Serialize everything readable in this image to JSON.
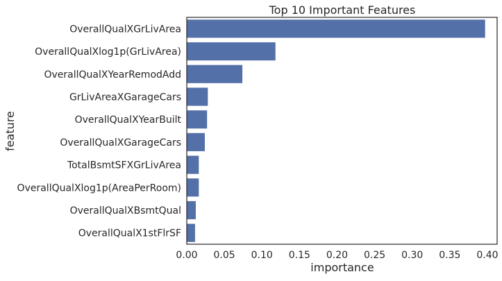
{
  "chart_data": {
    "type": "bar",
    "orientation": "horizontal",
    "title": "Top 10 Important Features",
    "xlabel": "importance",
    "ylabel": "feature",
    "categories": [
      "OverallQualXGrLivArea",
      "OverallQualXlog1p(GrLivArea)",
      "OverallQualXYearRemodAdd",
      "GrLivAreaXGarageCars",
      "OverallQualXYearBuilt",
      "OverallQualXGarageCars",
      "TotalBsmtSFXGrLivArea",
      "OverallQualXlog1p(AreaPerRoom)",
      "OverallQualXBsmtQual",
      "OverallQualX1stFlrSF"
    ],
    "values": [
      0.397,
      0.118,
      0.074,
      0.028,
      0.027,
      0.024,
      0.016,
      0.016,
      0.012,
      0.011
    ],
    "xlim": [
      0,
      0.413
    ],
    "xticks": [
      "0.00",
      "0.05",
      "0.10",
      "0.15",
      "0.20",
      "0.25",
      "0.30",
      "0.35",
      "0.40"
    ],
    "grid": false,
    "bar_color": "#5470a8"
  }
}
